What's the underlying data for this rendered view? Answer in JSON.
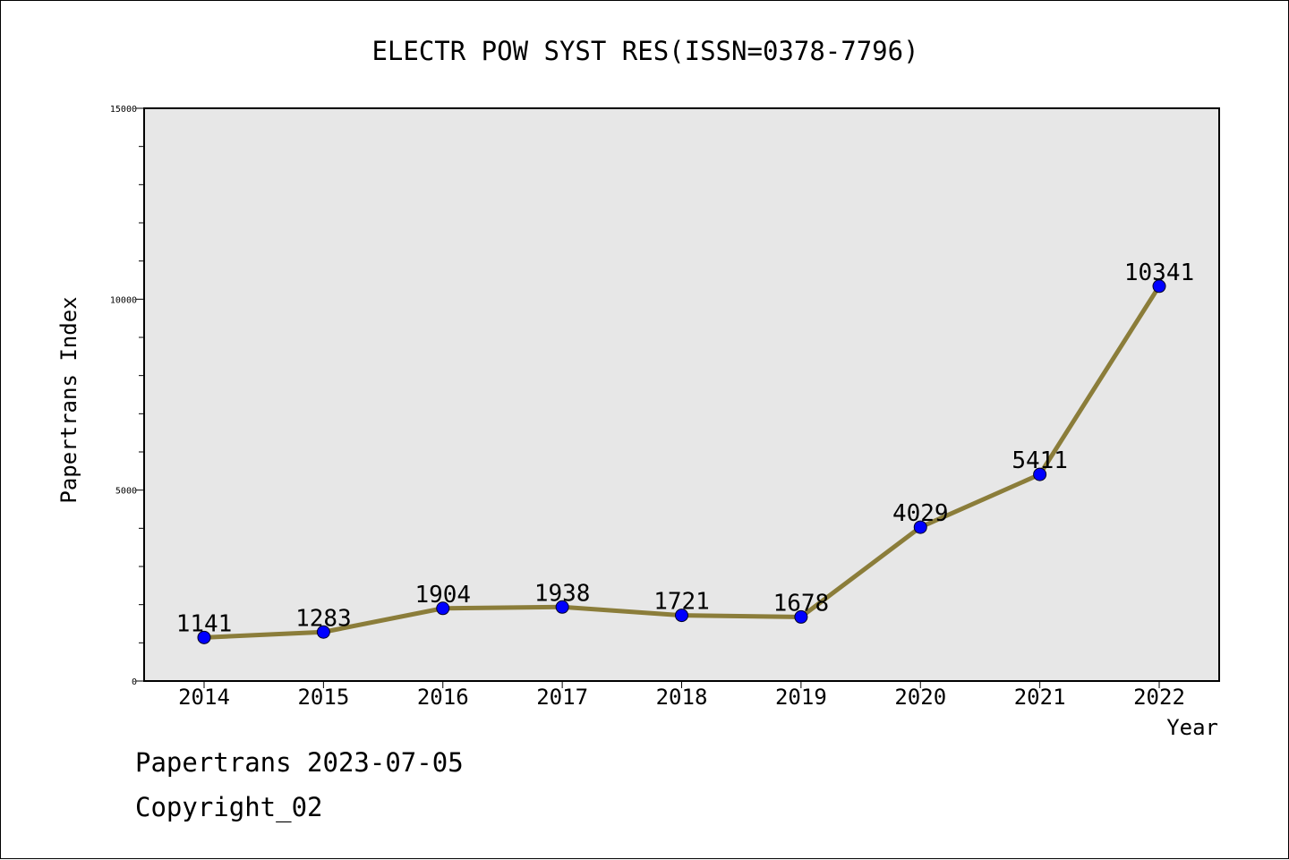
{
  "chart_data": {
    "type": "line",
    "title": "ELECTR POW SYST RES(ISSN=0378-7796)",
    "xlabel": "Year",
    "ylabel": "Papertrans Index",
    "categories": [
      "2014",
      "2015",
      "2016",
      "2017",
      "2018",
      "2019",
      "2020",
      "2021",
      "2022"
    ],
    "values": [
      1141,
      1283,
      1904,
      1938,
      1721,
      1678,
      4029,
      5411,
      10341
    ],
    "ylim": [
      0,
      15000
    ],
    "yticks": [
      "0",
      "5000",
      "10000",
      "15000"
    ],
    "grid": false,
    "legend": "none",
    "colors": {
      "line": "#8B7D3A",
      "marker": "#0000FF",
      "plot_background": "#E7E7E7"
    }
  },
  "footer": {
    "line1": "Papertrans 2023-07-05",
    "line2": "Copyright_02"
  }
}
